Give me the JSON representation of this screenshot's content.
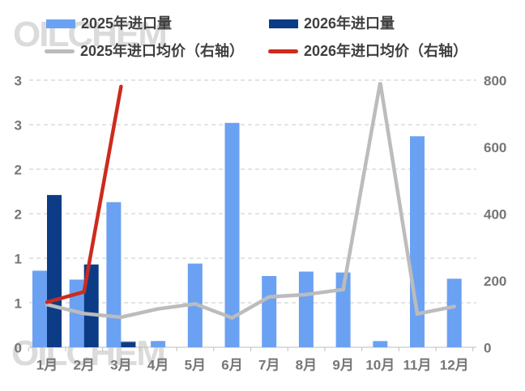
{
  "watermark": {
    "text": "OILCHEM"
  },
  "legend": {
    "items": [
      {
        "label": "2025年进口量",
        "swatch": "bar",
        "color": "#6BA1F2"
      },
      {
        "label": "2026年进口量",
        "swatch": "bar",
        "color": "#0C3C86"
      },
      {
        "label": "2025年进口均价（右轴）",
        "swatch": "line",
        "color": "#BCBCBC"
      },
      {
        "label": "2026年进口均价（右轴）",
        "swatch": "line",
        "color": "#CE2A1E"
      }
    ]
  },
  "chart_data": {
    "type": "bar",
    "subtype": "combo-bar-line-dual-axis",
    "categories": [
      "1月",
      "2月",
      "3月",
      "4月",
      "5月",
      "6月",
      "7月",
      "8月",
      "9月",
      "10月",
      "11月",
      "12月"
    ],
    "series": [
      {
        "name": "2025年进口量",
        "type": "bar",
        "axis": "left",
        "color": "#6BA1F2",
        "values": [
          0.86,
          0.76,
          1.63,
          0.07,
          0.94,
          2.52,
          0.8,
          0.85,
          0.84,
          0.07,
          2.37,
          0.77
        ]
      },
      {
        "name": "2026年进口量",
        "type": "bar",
        "axis": "left",
        "color": "#0C3C86",
        "values": [
          1.71,
          0.93,
          0.06,
          null,
          null,
          null,
          null,
          null,
          null,
          null,
          null,
          null
        ]
      },
      {
        "name": "2025年进口均价（右轴）",
        "type": "line",
        "axis": "right",
        "color": "#BCBCBC",
        "values": [
          128,
          101,
          90,
          115,
          130,
          88,
          151,
          158,
          173,
          793,
          100,
          122
        ]
      },
      {
        "name": "2026年进口均价（右轴）",
        "type": "line",
        "axis": "right",
        "color": "#CE2A1E",
        "values": [
          135,
          166,
          781,
          null,
          null,
          null,
          null,
          null,
          null,
          null,
          null,
          null
        ]
      }
    ],
    "left_axis": {
      "range": [
        0,
        3
      ],
      "step": 0.5,
      "tick_labels": [
        "3",
        "3",
        "2",
        "2",
        "1",
        "1",
        "0"
      ]
    },
    "right_axis": {
      "range": [
        0,
        800
      ],
      "step": 200,
      "tick_labels": [
        "800",
        "600",
        "400",
        "200",
        "0"
      ]
    },
    "grid": true,
    "legend_position": "top",
    "title": "",
    "xlabel": "",
    "ylabel": ""
  },
  "style": {
    "gridline_color": "#C9C9C9",
    "axis_line_color": "#BEBEBE",
    "axis_text_color": "#767676",
    "legend_text_color": "#3F3F3F",
    "watermark_color": "#DBDBDB",
    "background": "#FFFFFF"
  }
}
